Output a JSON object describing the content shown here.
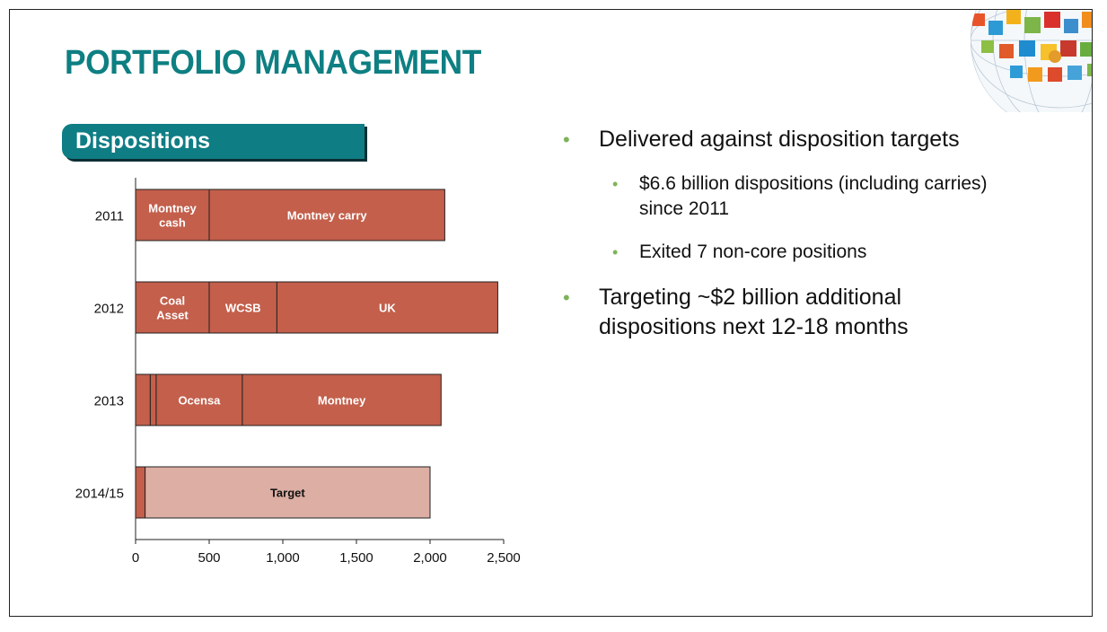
{
  "slide": {
    "title": "PORTFOLIO MANAGEMENT",
    "section_label": "Dispositions"
  },
  "bullets": [
    {
      "level": 1,
      "lines": [
        "Delivered against disposition targets"
      ]
    },
    {
      "level": 2,
      "lines": [
        "$6.6 billion dispositions (including carries)",
        "since 2011"
      ]
    },
    {
      "level": 2,
      "lines": [
        "Exited 7 non-core positions"
      ]
    },
    {
      "level": 1,
      "lines": [
        "Targeting ~$2 billion additional",
        "dispositions next 12-18 months"
      ]
    }
  ],
  "colors": {
    "title": "#0e7f82",
    "badge": "#0f7d84",
    "bar": "#c35f4b",
    "target": "#dcaea4",
    "bullet_dot": "#7fb35a"
  },
  "chart_data": {
    "type": "bar",
    "orientation": "horizontal",
    "stacked": true,
    "categories": [
      "2011",
      "2012",
      "2013",
      "2014/15"
    ],
    "rows": [
      {
        "category": "2011",
        "segments": [
          {
            "label": [
              "Montney",
              "cash"
            ],
            "value": 500,
            "color": "#c35f4b"
          },
          {
            "label": [
              "Montney carry"
            ],
            "value": 1600,
            "color": "#c35f4b"
          }
        ]
      },
      {
        "category": "2012",
        "segments": [
          {
            "label": [
              "Coal",
              "Asset"
            ],
            "value": 500,
            "color": "#c35f4b"
          },
          {
            "label": [
              "WCSB"
            ],
            "value": 460,
            "color": "#c35f4b"
          },
          {
            "label": [
              "UK"
            ],
            "value": 1500,
            "color": "#c35f4b"
          }
        ]
      },
      {
        "category": "2013",
        "segments": [
          {
            "label": [],
            "value": 100,
            "color": "#c35f4b"
          },
          {
            "label": [],
            "value": 40,
            "color": "#c35f4b"
          },
          {
            "label": [
              "Ocensa"
            ],
            "value": 585,
            "color": "#c35f4b"
          },
          {
            "label": [
              "Montney"
            ],
            "value": 1350,
            "color": "#c35f4b"
          }
        ]
      },
      {
        "category": "2014/15",
        "segments": [
          {
            "label": [],
            "value": 65,
            "color": "#c35f4b"
          },
          {
            "label": [
              "Target"
            ],
            "value": 1935,
            "color": "#dcaea4",
            "dark_label": true
          }
        ]
      }
    ],
    "xlim": [
      0,
      2500
    ],
    "xticks": [
      0,
      500,
      1000,
      1500,
      2000,
      2500
    ],
    "xtick_labels": [
      "0",
      "500",
      "1,000",
      "1,500",
      "2,000",
      "2,500"
    ],
    "grid": false,
    "legend": "none"
  }
}
